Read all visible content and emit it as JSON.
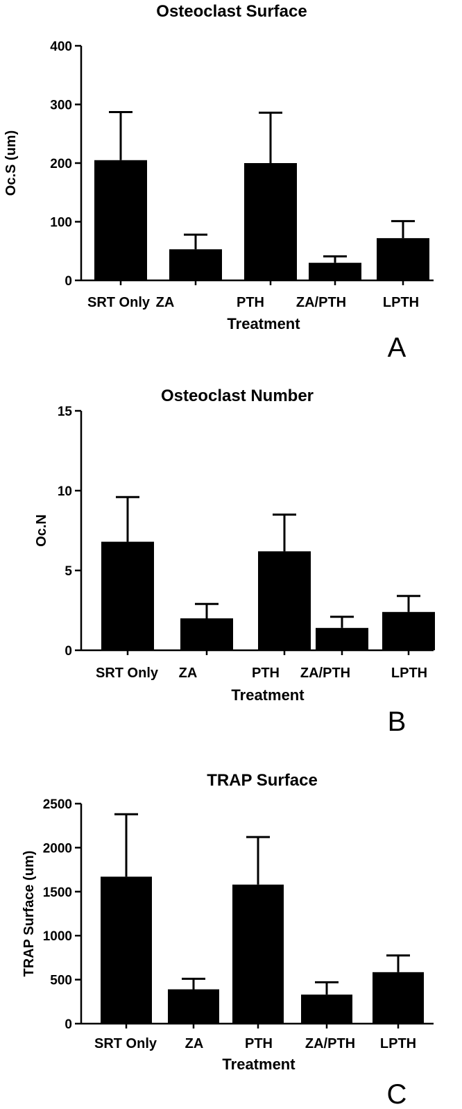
{
  "chart_data": [
    {
      "type": "bar",
      "panel": "A",
      "title": "Osteoclast Surface",
      "xlabel": "Treatment",
      "ylabel": "Oc.S (um)",
      "ylim": [
        0,
        400
      ],
      "yticks": [
        0,
        100,
        200,
        300,
        400
      ],
      "categories": [
        "SRT Only",
        "ZA",
        "PTH",
        "ZA/PTH",
        "LPTH"
      ],
      "values": [
        205,
        53,
        200,
        30,
        72
      ],
      "errors": [
        82,
        25,
        86,
        11,
        29
      ],
      "grid": false,
      "bar_color": "#000000"
    },
    {
      "type": "bar",
      "panel": "B",
      "title": "Osteoclast Number",
      "xlabel": "Treatment",
      "ylabel": "Oc.N",
      "ylim": [
        0,
        15
      ],
      "yticks": [
        0,
        5,
        10,
        15
      ],
      "categories": [
        "SRT Only",
        "ZA",
        "PTH",
        "ZA/PTH",
        "LPTH"
      ],
      "values": [
        6.8,
        2.0,
        6.2,
        1.4,
        2.4
      ],
      "errors": [
        2.8,
        0.9,
        2.3,
        0.7,
        1.0
      ],
      "grid": false,
      "bar_color": "#000000"
    },
    {
      "type": "bar",
      "panel": "C",
      "title": "TRAP Surface",
      "xlabel": "Treatment",
      "ylabel": "TRAP Surface (um)",
      "ylim": [
        0,
        2500
      ],
      "yticks": [
        0,
        500,
        1000,
        1500,
        2000,
        2500
      ],
      "categories": [
        "SRT Only",
        "ZA",
        "PTH",
        "ZA/PTH",
        "LPTH"
      ],
      "values": [
        1670,
        390,
        1580,
        330,
        585
      ],
      "errors": [
        710,
        120,
        540,
        140,
        190
      ],
      "grid": false,
      "bar_color": "#000000"
    }
  ]
}
